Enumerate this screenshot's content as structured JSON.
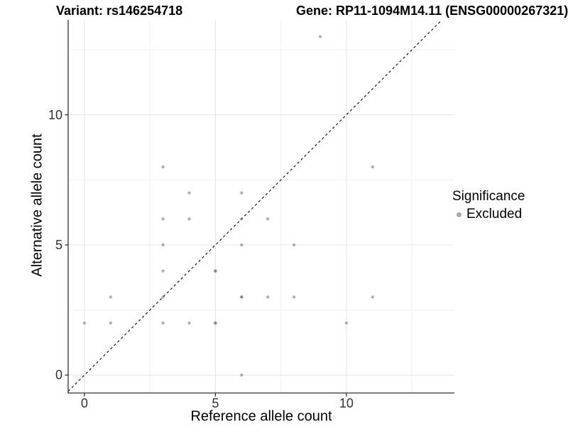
{
  "header": {
    "variant_title": "Variant: rs146254718",
    "gene_title": "Gene: RP11-1094M14.11 (ENSG00000267321)"
  },
  "legend": {
    "title": "Significance",
    "items": [
      {
        "label": "Excluded",
        "color": "#ababab"
      }
    ]
  },
  "chart_data": {
    "type": "scatter",
    "x_label": "Reference allele count",
    "y_label": "Alternative allele count",
    "x_ticks": [
      0,
      5,
      10
    ],
    "y_ticks": [
      0,
      5,
      10
    ],
    "x_range": [
      -0.62,
      14.12
    ],
    "y_range": [
      -0.68,
      13.65
    ],
    "grid": {
      "on": true,
      "x_major": [
        0,
        5,
        10
      ],
      "x_minor": [
        2.5,
        7.5,
        12.5
      ],
      "y_major": [
        0,
        5,
        10
      ],
      "y_minor": [
        2.5,
        7.5,
        12.5
      ],
      "major_color": "#e4e4e4",
      "minor_color": "#f1f1f1"
    },
    "reference_line": {
      "kind": "identity y=x",
      "style": "dashed",
      "color": "#1a1a1a"
    },
    "point_style": {
      "color": "rgba(100,100,100,0.5)",
      "radius": 2.2
    },
    "legend_position": "right",
    "points": [
      {
        "x": 0,
        "y": 2,
        "n": 1
      },
      {
        "x": 1,
        "y": 2,
        "n": 1
      },
      {
        "x": 1,
        "y": 3,
        "n": 1
      },
      {
        "x": 3,
        "y": 2,
        "n": 1
      },
      {
        "x": 3,
        "y": 3,
        "n": 1
      },
      {
        "x": 3,
        "y": 4,
        "n": 1
      },
      {
        "x": 3,
        "y": 5,
        "n": 1
      },
      {
        "x": 3,
        "y": 6,
        "n": 1
      },
      {
        "x": 3,
        "y": 8,
        "n": 1
      },
      {
        "x": 4,
        "y": 2,
        "n": 1
      },
      {
        "x": 4,
        "y": 6,
        "n": 1
      },
      {
        "x": 4,
        "y": 7,
        "n": 1
      },
      {
        "x": 5,
        "y": 2,
        "n": 2
      },
      {
        "x": 5,
        "y": 4,
        "n": 2
      },
      {
        "x": 6,
        "y": 0,
        "n": 1
      },
      {
        "x": 6,
        "y": 3,
        "n": 2
      },
      {
        "x": 6,
        "y": 5,
        "n": 1
      },
      {
        "x": 6,
        "y": 6,
        "n": 1
      },
      {
        "x": 6,
        "y": 7,
        "n": 1
      },
      {
        "x": 7,
        "y": 3,
        "n": 1
      },
      {
        "x": 7,
        "y": 6,
        "n": 1
      },
      {
        "x": 8,
        "y": 3,
        "n": 1
      },
      {
        "x": 8,
        "y": 5,
        "n": 1
      },
      {
        "x": 9,
        "y": 13,
        "n": 1
      },
      {
        "x": 10,
        "y": 2,
        "n": 1
      },
      {
        "x": 11,
        "y": 3,
        "n": 1
      },
      {
        "x": 11,
        "y": 8,
        "n": 1
      }
    ],
    "axis_color": "#333333"
  }
}
